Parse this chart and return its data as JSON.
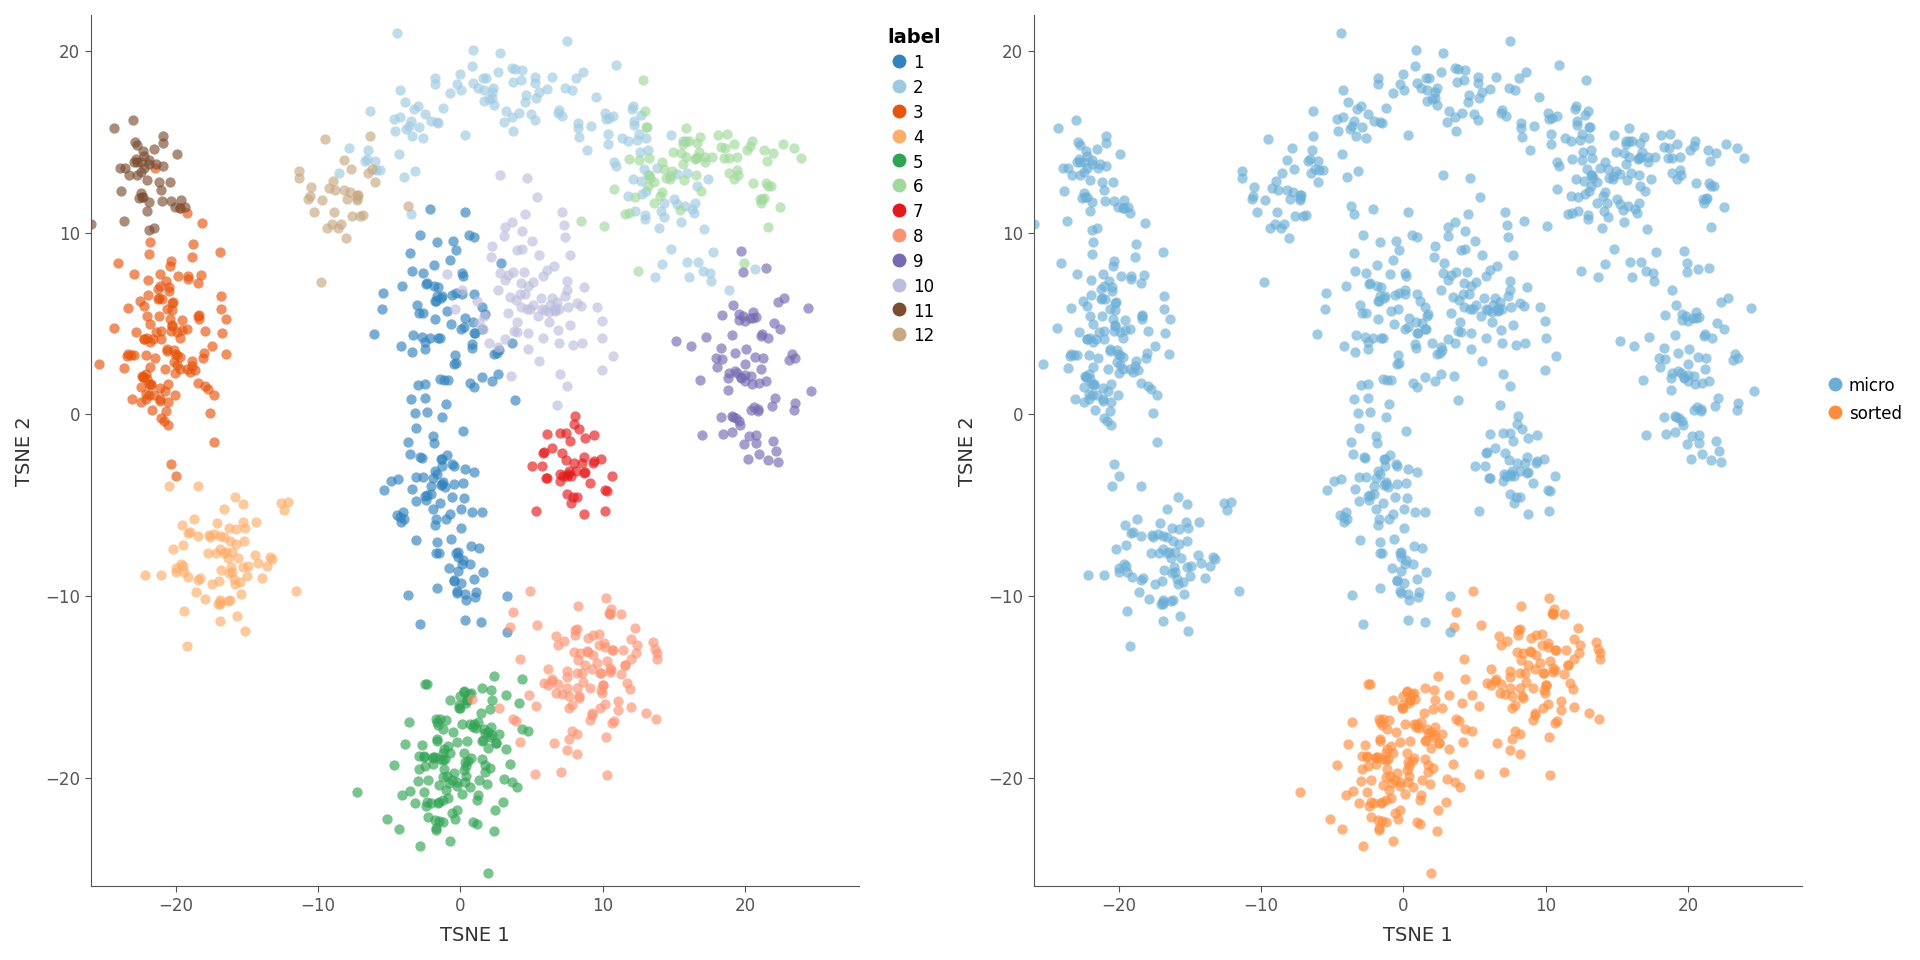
{
  "cluster_colors": {
    "1": "#3182BD",
    "2": "#9ECAE1",
    "3": "#E6550D",
    "4": "#FDAE6B",
    "5": "#31A354",
    "6": "#A1D99B",
    "7": "#E31A1C",
    "8": "#FC9272",
    "9": "#756BB1",
    "10": "#BCBDDC",
    "11": "#7B4E32",
    "12": "#C6A882"
  },
  "protocol_colors": {
    "micro": "#6BAED6",
    "sorted": "#FD8D3C"
  },
  "xlabel": "TSNE 1",
  "ylabel": "TSNE 2",
  "legend_title": "label",
  "legend_labels": [
    "1",
    "2",
    "3",
    "4",
    "5",
    "6",
    "7",
    "8",
    "9",
    "10",
    "11",
    "12"
  ],
  "protocol_legend": [
    "micro",
    "sorted"
  ],
  "xlim": [
    -26,
    28
  ],
  "ylim": [
    -26,
    22
  ],
  "point_size": 55,
  "alpha": 0.65,
  "bg_color": "#ffffff"
}
